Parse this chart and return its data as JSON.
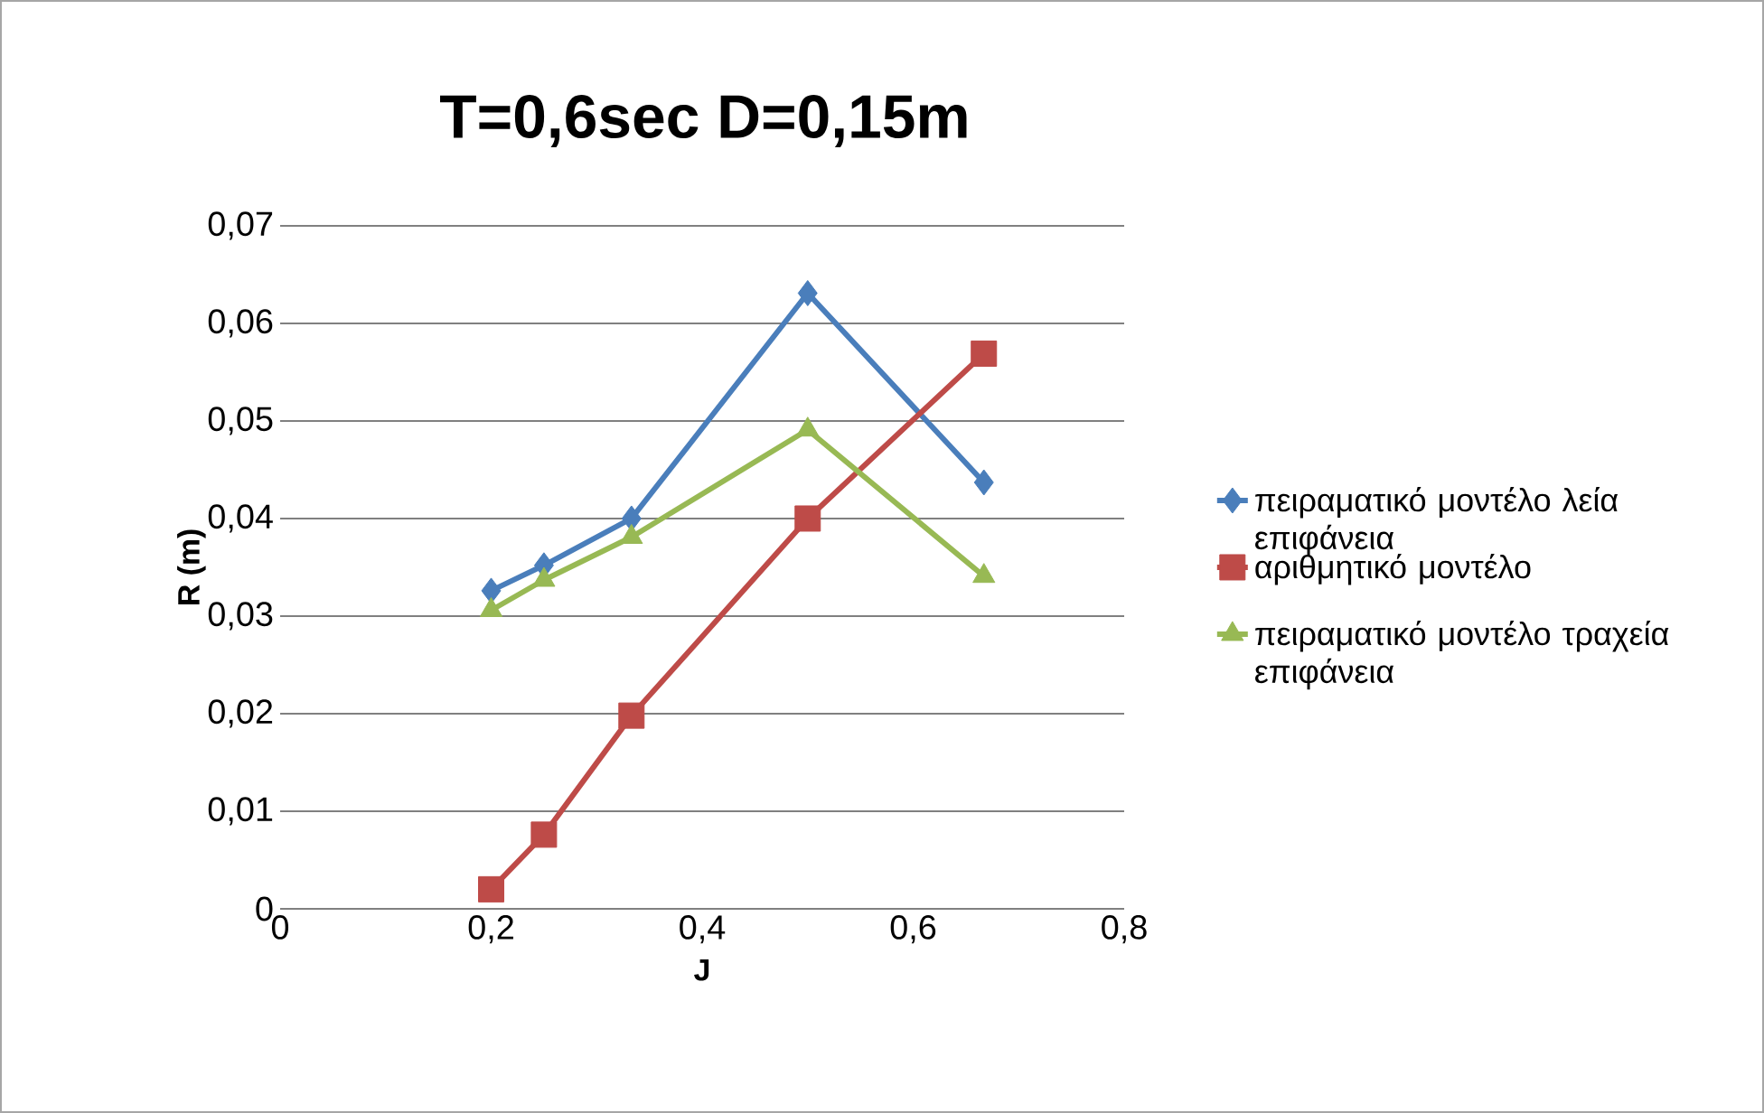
{
  "chart_data": {
    "type": "line",
    "title": "T=0,6sec D=0,15m",
    "xlabel": "J",
    "ylabel": "R (m)",
    "xlim": [
      0,
      0.8
    ],
    "xticks": [
      0,
      {
        "value": 0.2,
        "label": "0,2"
      },
      {
        "value": 0.4,
        "label": "0,4"
      },
      {
        "value": 0.6,
        "label": "0,6"
      },
      {
        "value": 0.8,
        "label": "0,8"
      }
    ],
    "ylim": [
      0,
      0.07
    ],
    "yticks": [
      0,
      {
        "value": 0.01,
        "label": "0,01"
      },
      {
        "value": 0.02,
        "label": "0,02"
      },
      {
        "value": 0.03,
        "label": "0,03"
      },
      {
        "value": 0.04,
        "label": "0,04"
      },
      {
        "value": 0.05,
        "label": "0,05"
      },
      {
        "value": 0.06,
        "label": "0,06"
      },
      {
        "value": 0.07,
        "label": "0,07"
      }
    ],
    "grid": "y",
    "legend": "right",
    "series": [
      {
        "name": "πειραματικό μοντέλο λεία επιφάνεια",
        "color": "#4a7ebb",
        "marker": "diamond",
        "x": [
          0.2,
          0.25,
          0.333,
          0.5,
          0.667
        ],
        "values": [
          0.0326,
          0.0352,
          0.04,
          0.0631,
          0.0437
        ]
      },
      {
        "name": "αριθμητικό μοντέλο",
        "color": "#be4b48",
        "marker": "square",
        "x": [
          0.2,
          0.25,
          0.333,
          0.5,
          0.667
        ],
        "values": [
          0.002,
          0.0076,
          0.0198,
          0.04,
          0.0569
        ]
      },
      {
        "name": "πειραματικό μοντέλο τραχεία επιφάνεια",
        "color": "#98b954",
        "marker": "triangle",
        "x": [
          0.2,
          0.25,
          0.333,
          0.5,
          0.667
        ],
        "values": [
          0.0306,
          0.0337,
          0.0381,
          0.0491,
          0.0341
        ]
      }
    ]
  }
}
